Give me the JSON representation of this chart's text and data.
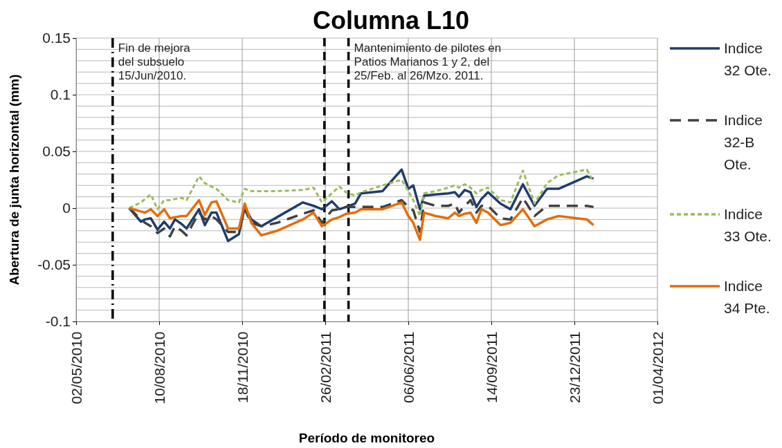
{
  "chart_data": {
    "type": "line",
    "title": "Columna L10",
    "xlabel": "Período de monitoreo",
    "ylabel": "Abertura de junta horizontal (mm)",
    "x": [
      "2010-07-05",
      "2010-07-19",
      "2010-07-24",
      "2010-07-31",
      "2010-08-08",
      "2010-08-16",
      "2010-08-23",
      "2010-08-29",
      "2010-09-06",
      "2010-09-12",
      "2010-09-27",
      "2010-10-04",
      "2010-10-12",
      "2010-10-18",
      "2010-11-01",
      "2010-11-14",
      "2010-11-21",
      "2010-11-29",
      "2010-12-11",
      "2010-12-30",
      "2011-01-30",
      "2011-02-12",
      "2011-02-22",
      "2011-03-06",
      "2011-03-15",
      "2011-03-23",
      "2011-04-03",
      "2011-04-10",
      "2011-05-06",
      "2011-05-29",
      "2011-06-06",
      "2011-06-12",
      "2011-06-20",
      "2011-06-25",
      "2011-07-09",
      "2011-07-24",
      "2011-08-01",
      "2011-08-06",
      "2011-08-13",
      "2011-08-20",
      "2011-08-27",
      "2011-09-02",
      "2011-09-10",
      "2011-09-25",
      "2011-10-07",
      "2011-10-22",
      "2011-11-05",
      "2011-11-20",
      "2011-12-04",
      "2012-01-07",
      "2012-01-15"
    ],
    "series": [
      {
        "name": "Indice 32 Ote.",
        "color": "#1f3d6b",
        "line_style": "solid",
        "values": [
          0,
          -0.012,
          -0.01,
          -0.009,
          -0.019,
          -0.012,
          -0.018,
          -0.01,
          -0.014,
          -0.018,
          -0.001,
          -0.015,
          -0.004,
          -0.004,
          -0.029,
          -0.023,
          0.001,
          -0.01,
          -0.016,
          -0.008,
          0.005,
          0.002,
          -0.001,
          0.006,
          -0.001,
          0.001,
          0.004,
          0.013,
          0.015,
          0.034,
          0.017,
          0.02,
          -0.001,
          0.011,
          0.012,
          0.013,
          0.014,
          0.01,
          0.016,
          0.014,
          0.001,
          0.008,
          0.014,
          0.004,
          -0.001,
          0.021,
          0.002,
          0.017,
          0.017,
          0.028,
          0.026
        ]
      },
      {
        "name": "Indice 32-B Ote.",
        "color": "#404040",
        "line_style": "dashed",
        "values": [
          0,
          -0.01,
          -0.013,
          -0.016,
          -0.022,
          -0.018,
          -0.025,
          -0.016,
          -0.02,
          -0.024,
          -0.004,
          -0.01,
          -0.007,
          -0.01,
          -0.021,
          -0.021,
          -0.001,
          -0.013,
          -0.016,
          -0.013,
          -0.005,
          -0.002,
          -0.013,
          -0.002,
          -0.001,
          0.001,
          0.001,
          0.001,
          0.001,
          0.007,
          0.001,
          -0.002,
          -0.021,
          0.005,
          0.002,
          0.002,
          0.004,
          -0.004,
          0.002,
          0.007,
          -0.004,
          0.002,
          0.002,
          -0.009,
          -0.01,
          0.009,
          -0.007,
          0.002,
          0.002,
          0.002,
          0.001
        ]
      },
      {
        "name": "Indice 33 Ote.",
        "color": "#9bbb59",
        "line_style": "dotted",
        "values": [
          0,
          0.005,
          0.008,
          0.012,
          -0.001,
          0.007,
          0.007,
          0.008,
          0.009,
          0.007,
          0.028,
          0.022,
          0.019,
          0.017,
          0.007,
          0.005,
          0.017,
          0.015,
          0.015,
          0.015,
          0.016,
          0.018,
          0.005,
          0.013,
          0.019,
          0.014,
          0.011,
          0.014,
          0.02,
          0.025,
          0.015,
          0.007,
          -0.007,
          0.013,
          0.015,
          0.018,
          0.02,
          0.018,
          0.021,
          0.018,
          0.013,
          0.016,
          0.018,
          0.007,
          0.005,
          0.033,
          0.004,
          0.022,
          0.029,
          0.034,
          0.023
        ]
      },
      {
        "name": "Indice 34 Pte.",
        "color": "#e46c0a",
        "line_style": "solid",
        "values": [
          0,
          -0.003,
          -0.004,
          -0.001,
          -0.007,
          -0.001,
          -0.009,
          -0.008,
          -0.007,
          -0.007,
          0.007,
          -0.006,
          0.005,
          0.006,
          -0.018,
          -0.018,
          0.004,
          -0.013,
          -0.024,
          -0.02,
          -0.01,
          -0.004,
          -0.016,
          -0.01,
          -0.008,
          -0.005,
          -0.004,
          -0.001,
          -0.001,
          0.005,
          -0.007,
          -0.013,
          -0.028,
          -0.004,
          -0.007,
          -0.009,
          -0.004,
          -0.007,
          -0.005,
          -0.004,
          -0.013,
          -0.001,
          -0.004,
          -0.015,
          -0.013,
          -0.001,
          -0.016,
          -0.01,
          -0.007,
          -0.01,
          -0.015
        ]
      }
    ],
    "xlim": [
      "2010-05-02",
      "2012-04-01"
    ],
    "xticks": [
      {
        "value": "2010-05-02",
        "label": "02/05/2010"
      },
      {
        "value": "2010-08-10",
        "label": "10/08/2010"
      },
      {
        "value": "2010-11-18",
        "label": "18/11/2010"
      },
      {
        "value": "2011-02-26",
        "label": "26/02/2011"
      },
      {
        "value": "2011-06-06",
        "label": "06/06/2011"
      },
      {
        "value": "2011-09-14",
        "label": "14/09/2011"
      },
      {
        "value": "2011-12-23",
        "label": "23/12/2011"
      },
      {
        "value": "2012-04-01",
        "label": "01/04/2012"
      }
    ],
    "ylim": [
      -0.1,
      0.15
    ],
    "yticks": [
      -0.1,
      {
        "value": -0.09,
        "label": null
      },
      {
        "value": -0.08,
        "label": null
      },
      {
        "value": -0.07,
        "label": null
      },
      {
        "value": -0.06,
        "label": null
      },
      -0.05,
      {
        "value": -0.04,
        "label": null
      },
      {
        "value": -0.03,
        "label": null
      },
      {
        "value": -0.02,
        "label": null
      },
      {
        "value": -0.01,
        "label": null
      },
      0,
      {
        "value": 0.01,
        "label": null
      },
      {
        "value": 0.02,
        "label": null
      },
      {
        "value": 0.03,
        "label": null
      },
      {
        "value": 0.04,
        "label": null
      },
      0.05,
      {
        "value": 0.06,
        "label": null
      },
      {
        "value": 0.07,
        "label": null
      },
      {
        "value": 0.08,
        "label": null
      },
      {
        "value": 0.09,
        "label": null
      },
      0.1,
      {
        "value": 0.11,
        "label": null
      },
      {
        "value": 0.12,
        "label": null
      },
      {
        "value": 0.13,
        "label": null
      },
      {
        "value": 0.14,
        "label": null
      },
      0.15
    ],
    "grid": true,
    "legend": "right",
    "marker": "none",
    "ref_lines": [
      {
        "axis": "x",
        "value": "2010-06-15",
        "label": "Fin de mejora\ndel subsuelo\n15/Jun/2010.",
        "color": "#000000",
        "line_style": "dashdot"
      },
      {
        "axis": "x",
        "value": "2011-02-25",
        "color": "#000000",
        "line_style": "dashed"
      },
      {
        "axis": "x",
        "value": "2011-03-26",
        "label": "Mantenimiento  de pilotes en\nPatios Marianos 1 y 2, del\n25/Feb. al 26/Mzo. 2011.",
        "color": "#000000",
        "line_style": "dashed"
      }
    ]
  }
}
